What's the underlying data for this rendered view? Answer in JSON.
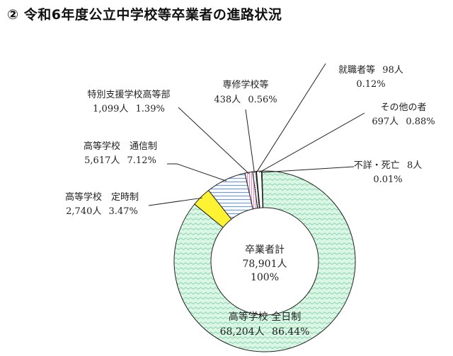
{
  "title": "② 令和6年度公立中学校等卒業者の進路状況",
  "chart_data": {
    "type": "pie",
    "donut": true,
    "center": {
      "name": "卒業者計",
      "count": "78,901人",
      "percent": "100%"
    },
    "slices": [
      {
        "name": "高等学校 全日制",
        "count": "68,204人",
        "percent": "86.44%",
        "value": 86.44,
        "color": "#d9f5e4",
        "pattern": "pat-green"
      },
      {
        "name": "高等学校　定時制",
        "count": "2,740人",
        "percent": "3.47%",
        "value": 3.47,
        "color": "#fff233",
        "pattern": null
      },
      {
        "name": "高等学校　通信制",
        "count": "5,617人",
        "percent": "7.12%",
        "value": 7.12,
        "color": "#e8f2ff",
        "pattern": "pat-blue"
      },
      {
        "name": "特別支援学校高等部",
        "count": "1,099人",
        "percent": "1.39%",
        "value": 1.39,
        "color": "#ffffff",
        "pattern": "pat-pink"
      },
      {
        "name": "専修学校等",
        "count": "438人",
        "percent": "0.56%",
        "value": 0.56,
        "color": "#ffffff",
        "pattern": "pat-gray"
      },
      {
        "name": "就職者等",
        "count": "98人",
        "percent": "0.12%",
        "value": 0.12,
        "color": "#000000",
        "pattern": null
      },
      {
        "name": "その他の者",
        "count": "697人",
        "percent": "0.88%",
        "value": 0.88,
        "color": "#ffffff",
        "pattern": null
      },
      {
        "name": "不詳・死亡",
        "count": "8人",
        "percent": "0.01%",
        "value": 0.01,
        "color": "#000000",
        "pattern": null
      }
    ]
  }
}
